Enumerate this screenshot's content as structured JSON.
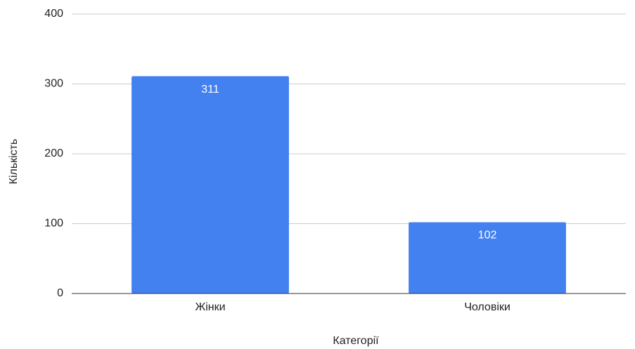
{
  "chart_data": {
    "type": "bar",
    "x_label": "Категорії",
    "y_label": "Кількість",
    "categories": [
      "Жінки",
      "Чоловіки"
    ],
    "values": [
      311,
      102
    ],
    "color": "#4380f0",
    "ylim": [
      0,
      400
    ],
    "yticks": [
      0,
      100,
      200,
      300,
      400
    ],
    "grid": true
  }
}
